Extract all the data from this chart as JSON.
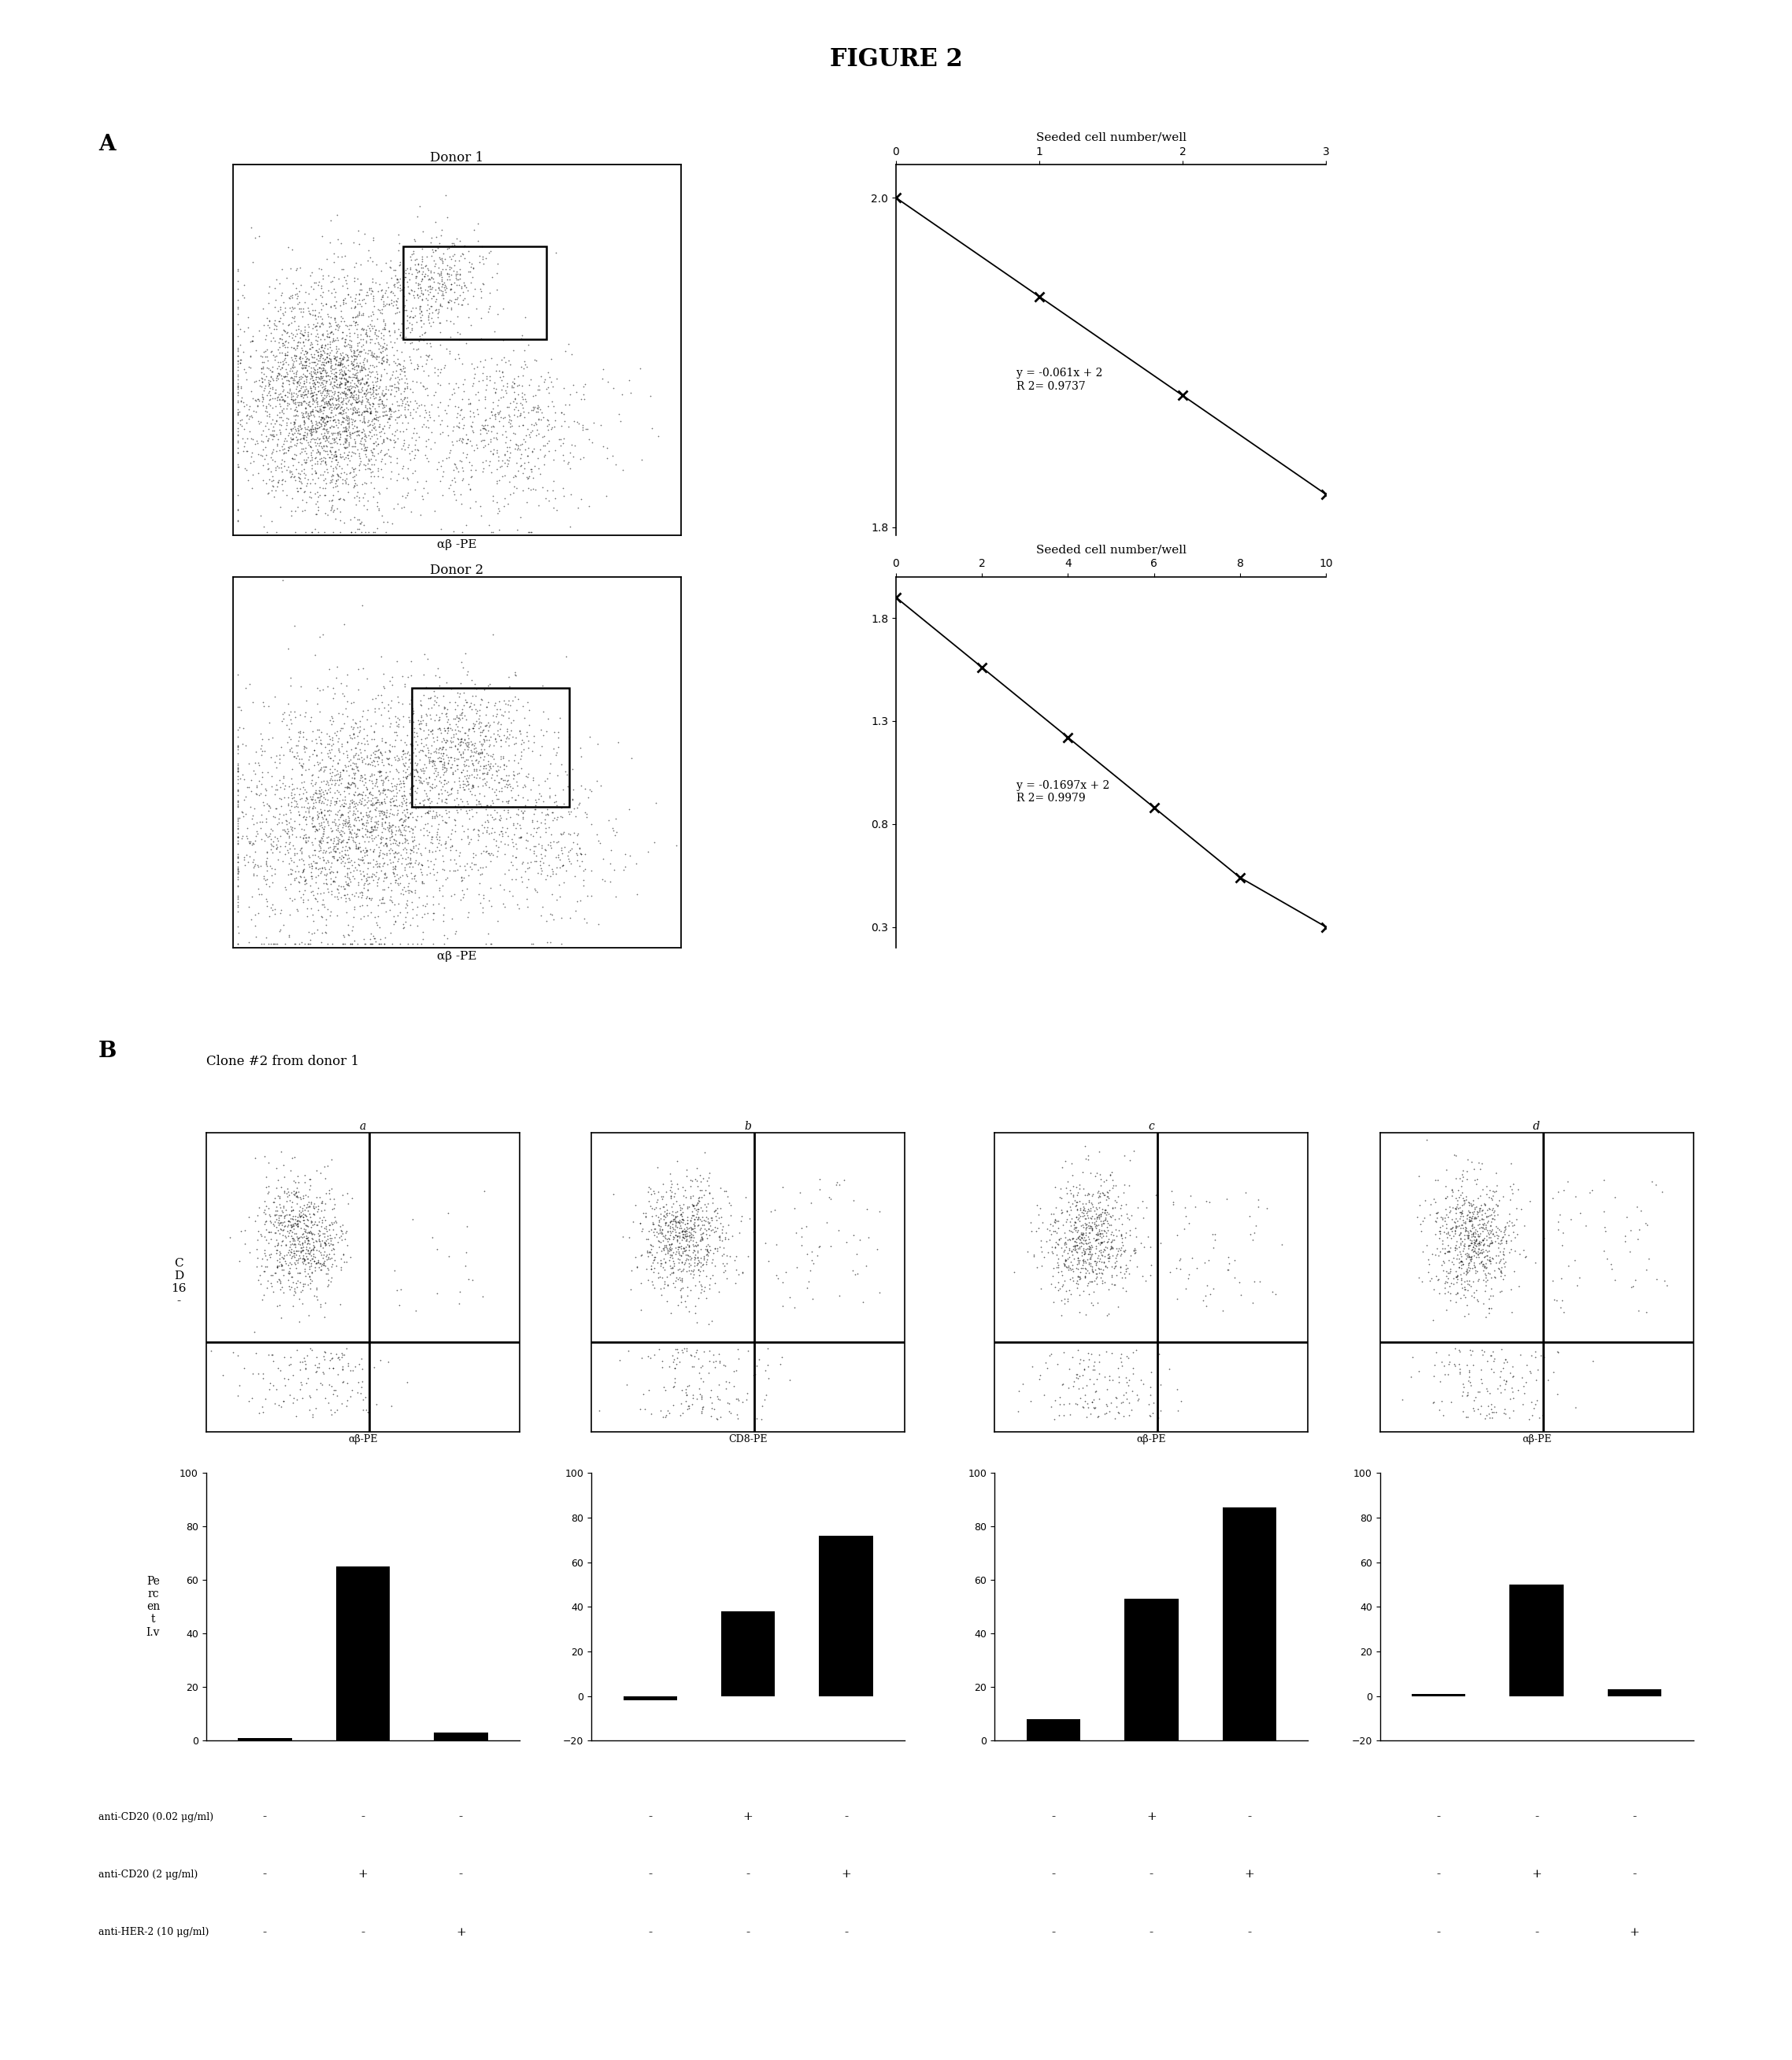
{
  "title": "FIGURE 2",
  "section_A_label": "A",
  "section_B_label": "B",
  "donor1_title": "Donor 1",
  "donor2_title": "Donor 2",
  "ab_pe_label": "αβ -PE",
  "clone_label": "Clone #2 from donor 1",
  "scatter_panel_labels": [
    "a",
    "b",
    "c",
    "d"
  ],
  "scatter_xlabels": [
    "αβ-PE",
    "CD8-PE",
    "αβ-PE",
    "αβ-PE"
  ],
  "cd16_ylabel": "C\nD\n16\n-",
  "percent_ylabel": "Pe\nrc\nen\nt\nI.v",
  "donor1_line": {
    "title": "Seeded cell number/well",
    "x": [
      0,
      1,
      2,
      3
    ],
    "y": [
      2.0,
      1.94,
      1.88,
      1.82
    ],
    "equation": "y = -0.061x + 2",
    "r2": "R 2= 0.9737",
    "xlim": [
      0,
      3
    ],
    "ylim": [
      1.795,
      2.02
    ],
    "yticks": [
      1.8,
      2.0
    ],
    "xticks": [
      0,
      1,
      2,
      3
    ]
  },
  "donor2_line": {
    "title": "Seeded cell number/well",
    "x": [
      0,
      2,
      4,
      6,
      8,
      10
    ],
    "y": [
      1.9,
      1.56,
      1.22,
      0.88,
      0.54,
      0.3
    ],
    "equation": "y = -0.1697x + 2",
    "r2": "R 2= 0.9979",
    "xlim": [
      0,
      10
    ],
    "ylim": [
      0.2,
      2.0
    ],
    "yticks": [
      0.3,
      0.8,
      1.3,
      1.8
    ],
    "xticks": [
      0,
      2,
      4,
      6,
      8,
      10
    ]
  },
  "bar_data": {
    "a": [
      1,
      65,
      3
    ],
    "b": [
      -2,
      38,
      72
    ],
    "c": [
      8,
      53,
      87
    ],
    "d": [
      1,
      50,
      3
    ]
  },
  "bar_ylims": {
    "a": [
      0,
      100
    ],
    "b": [
      -20,
      100
    ],
    "c": [
      0,
      100
    ],
    "d": [
      -20,
      100
    ]
  },
  "bar_yticks": {
    "a": [
      0,
      20,
      40,
      60,
      80,
      100
    ],
    "b": [
      -20,
      0,
      20,
      40,
      60,
      80,
      100
    ],
    "c": [
      0,
      20,
      40,
      60,
      80,
      100
    ],
    "d": [
      -20,
      0,
      20,
      40,
      60,
      80,
      100
    ]
  },
  "antibody_labels": [
    "anti-CD20 (0.02 μg/ml)",
    "anti-CD20 (2 μg/ml)",
    "anti-HER-2 (10 μg/ml)"
  ],
  "antibody_signs": {
    "a": [
      [
        "-",
        "-",
        "-"
      ],
      [
        "-",
        "+",
        "-"
      ],
      [
        "-",
        "-",
        "+"
      ]
    ],
    "b": [
      [
        "-",
        "+",
        "-"
      ],
      [
        "-",
        "-",
        "+"
      ],
      [
        "-",
        "-",
        "-"
      ]
    ],
    "c": [
      [
        "-",
        "+",
        "-"
      ],
      [
        "-",
        "-",
        "+"
      ],
      [
        "-",
        "-",
        "-"
      ]
    ],
    "d": [
      [
        "-",
        "-",
        "-"
      ],
      [
        "-",
        "+",
        "-"
      ],
      [
        "-",
        "-",
        "+"
      ]
    ]
  },
  "bg_color": "#ffffff"
}
